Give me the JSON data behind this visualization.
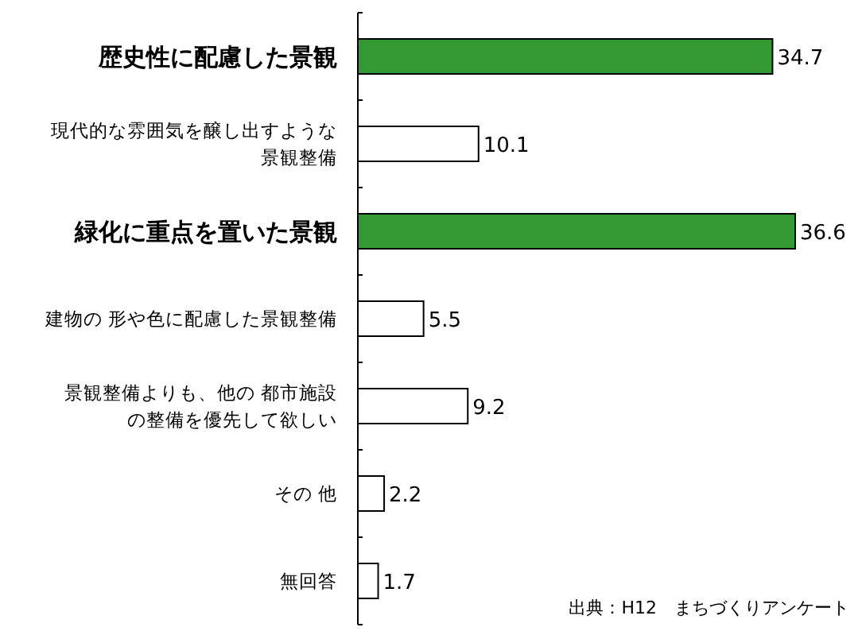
{
  "chart_data": {
    "type": "bar",
    "orientation": "horizontal",
    "categories": [
      "歴史性に配慮した景観",
      "現代的な雰囲気を醸し出すような景観整備",
      "緑化に重点を置いた景観",
      "建物の 形や色に配慮した景観整備",
      "景観整備よりも、他の 都市施設の整備を優先して欲しい",
      "その 他",
      "無回答"
    ],
    "values": [
      34.7,
      10.1,
      36.6,
      5.5,
      9.2,
      2.2,
      1.7
    ],
    "colors": [
      "#339933",
      "#ffffff",
      "#339933",
      "#ffffff",
      "#ffffff",
      "#ffffff",
      "#ffffff"
    ],
    "data_labels": true,
    "annotations": [
      "出典：H12　まちづくりアンケート"
    ]
  }
}
